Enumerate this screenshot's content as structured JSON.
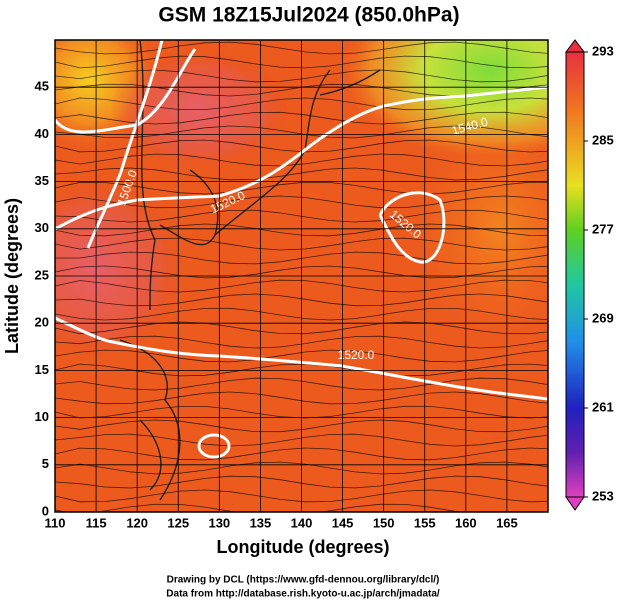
{
  "chart_data": {
    "type": "map",
    "title": "GSM 18Z15Jul2024 (850.0hPa)",
    "xlabel": "Longitude (degrees)",
    "ylabel": "Latitude  (degrees)",
    "xlim": [
      110,
      170
    ],
    "xticks": [
      110,
      115,
      120,
      125,
      130,
      135,
      140,
      145,
      150,
      155,
      160,
      165
    ],
    "ylim": [
      0,
      50
    ],
    "yticks": [
      0,
      5,
      10,
      15,
      20,
      25,
      30,
      35,
      40,
      45
    ],
    "colorbar": {
      "lim": [
        253,
        293
      ],
      "ticks": [
        253,
        261,
        269,
        277,
        285,
        293
      ]
    },
    "contour_labels": [
      "1500.0",
      "1520.0",
      "1520.0",
      "1520.0",
      "1540.0"
    ],
    "credits": [
      "Drawing by DCL (https://www.gfd-dennou.org/library/dcl/)",
      "Data from http://database.rish.kyoto-u.ac.jp/arch/jmadata/"
    ]
  }
}
